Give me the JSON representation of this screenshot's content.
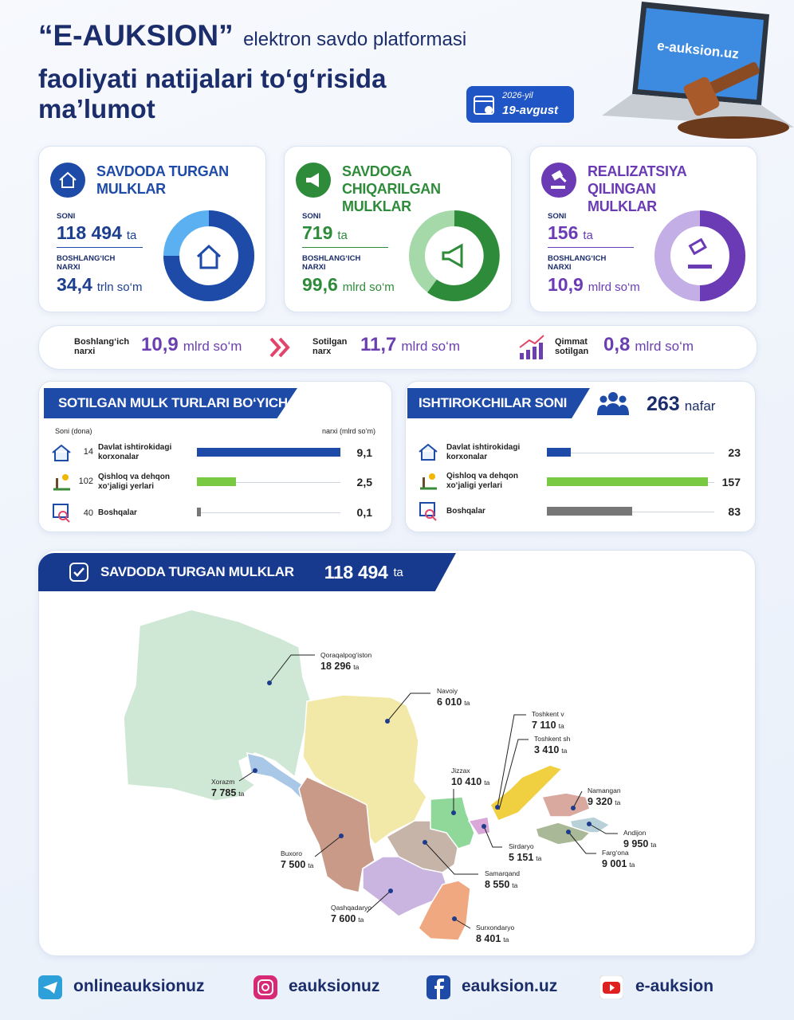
{
  "header": {
    "brand": "“E-AUKSION”",
    "title_rest": "elektron savdo platformasi",
    "title_line2": "faoliyati natijalari to‘g‘risida",
    "title_line3": "ma’lumot",
    "date_year": "2026-yil",
    "date_day": "19-avgust",
    "site": "e-auksion.uz"
  },
  "cards": [
    {
      "title": "SAVDODA TURGAN MULKLAR",
      "count_label": "SONI",
      "count": "118 494",
      "count_unit": "ta",
      "price_label": "BOSHLANG‘ICH NARXI",
      "price": "34,4",
      "price_unit": "trln so‘m"
    },
    {
      "title": "SAVDOGA CHIQARILGAN MULKLAR",
      "count_label": "SONI",
      "count": "719",
      "count_unit": "ta",
      "price_label": "BOSHLANG‘ICH NARXI",
      "price": "99,6",
      "price_unit": "mlrd so‘m"
    },
    {
      "title": "REALIZATSIYA QILINGAN MULKLAR",
      "count_label": "SONI",
      "count": "156",
      "count_unit": "ta",
      "price_label": "BOSHLANG‘ICH NARXI",
      "price": "10,9",
      "price_unit": "mlrd so‘m"
    }
  ],
  "summary": [
    {
      "label": "Boshlang‘ich narxi",
      "value": "10,9",
      "unit": "mlrd so‘m"
    },
    {
      "label": "Sotilgan narx",
      "value": "11,7",
      "unit": "mlrd so‘m"
    },
    {
      "label": "Qimmat sotilgan",
      "value": "0,8",
      "unit": "mlrd so‘m"
    }
  ],
  "sold_by_type": {
    "title": "SOTILGAN MULK TURLARI BO‘YICHA",
    "count_header": "Soni (dona)",
    "price_header": "narxi (mlrd so‘m)",
    "rows": [
      {
        "count": 14,
        "label": "Davlat ishtirokidagi korxonalar",
        "value": 9.1,
        "value_label": "9,1"
      },
      {
        "count": 102,
        "label": "Qishloq va dehqon xo‘jaligi yerlari",
        "value": 2.5,
        "value_label": "2,5"
      },
      {
        "count": 40,
        "label": "Boshqalar",
        "value": 0.1,
        "value_label": "0,1"
      }
    ]
  },
  "participants": {
    "title": "ISHTIROKCHILAR SONI",
    "total": 263,
    "unit": "nafar",
    "rows": [
      {
        "label": "Davlat ishtirokidagi korxonalar",
        "value": 23
      },
      {
        "label": "Qishloq va dehqon xo‘jaligi yerlari",
        "value": 157
      },
      {
        "label": "Boshqalar",
        "value": 83
      }
    ]
  },
  "map": {
    "title": "SAVDODA TURGAN MULKLAR",
    "total": "118 494",
    "unit": "ta",
    "regions": [
      {
        "name": "Qoraqalpog‘iston",
        "value": "18 296",
        "unit": "ta"
      },
      {
        "name": "Navoiy",
        "value": "6 010",
        "unit": "ta"
      },
      {
        "name": "Xorazm",
        "value": "7 785",
        "unit": "ta"
      },
      {
        "name": "Buxoro",
        "value": "7 500",
        "unit": "ta"
      },
      {
        "name": "Qashqadaryo",
        "value": "7 600",
        "unit": "ta"
      },
      {
        "name": "Samarqand",
        "value": "8 550",
        "unit": "ta"
      },
      {
        "name": "Surxondaryo",
        "value": "8 401",
        "unit": "ta"
      },
      {
        "name": "Jizzax",
        "value": "10 410",
        "unit": "ta"
      },
      {
        "name": "Sirdaryo",
        "value": "5 151",
        "unit": "ta"
      },
      {
        "name": "Toshkent v",
        "value": "7 110",
        "unit": "ta"
      },
      {
        "name": "Toshkent sh",
        "value": "3 410",
        "unit": "ta"
      },
      {
        "name": "Namangan",
        "value": "9 320",
        "unit": "ta"
      },
      {
        "name": "Andijon",
        "value": "9 950",
        "unit": "ta"
      },
      {
        "name": "Farg‘ona",
        "value": "9 001",
        "unit": "ta"
      }
    ]
  },
  "socials": [
    {
      "network": "telegram",
      "handle": "onlineauksionuz"
    },
    {
      "network": "instagram",
      "handle": "eauksionuz"
    },
    {
      "network": "facebook",
      "handle": "eauksion.uz"
    },
    {
      "network": "youtube",
      "handle": "e-auksion"
    }
  ]
}
